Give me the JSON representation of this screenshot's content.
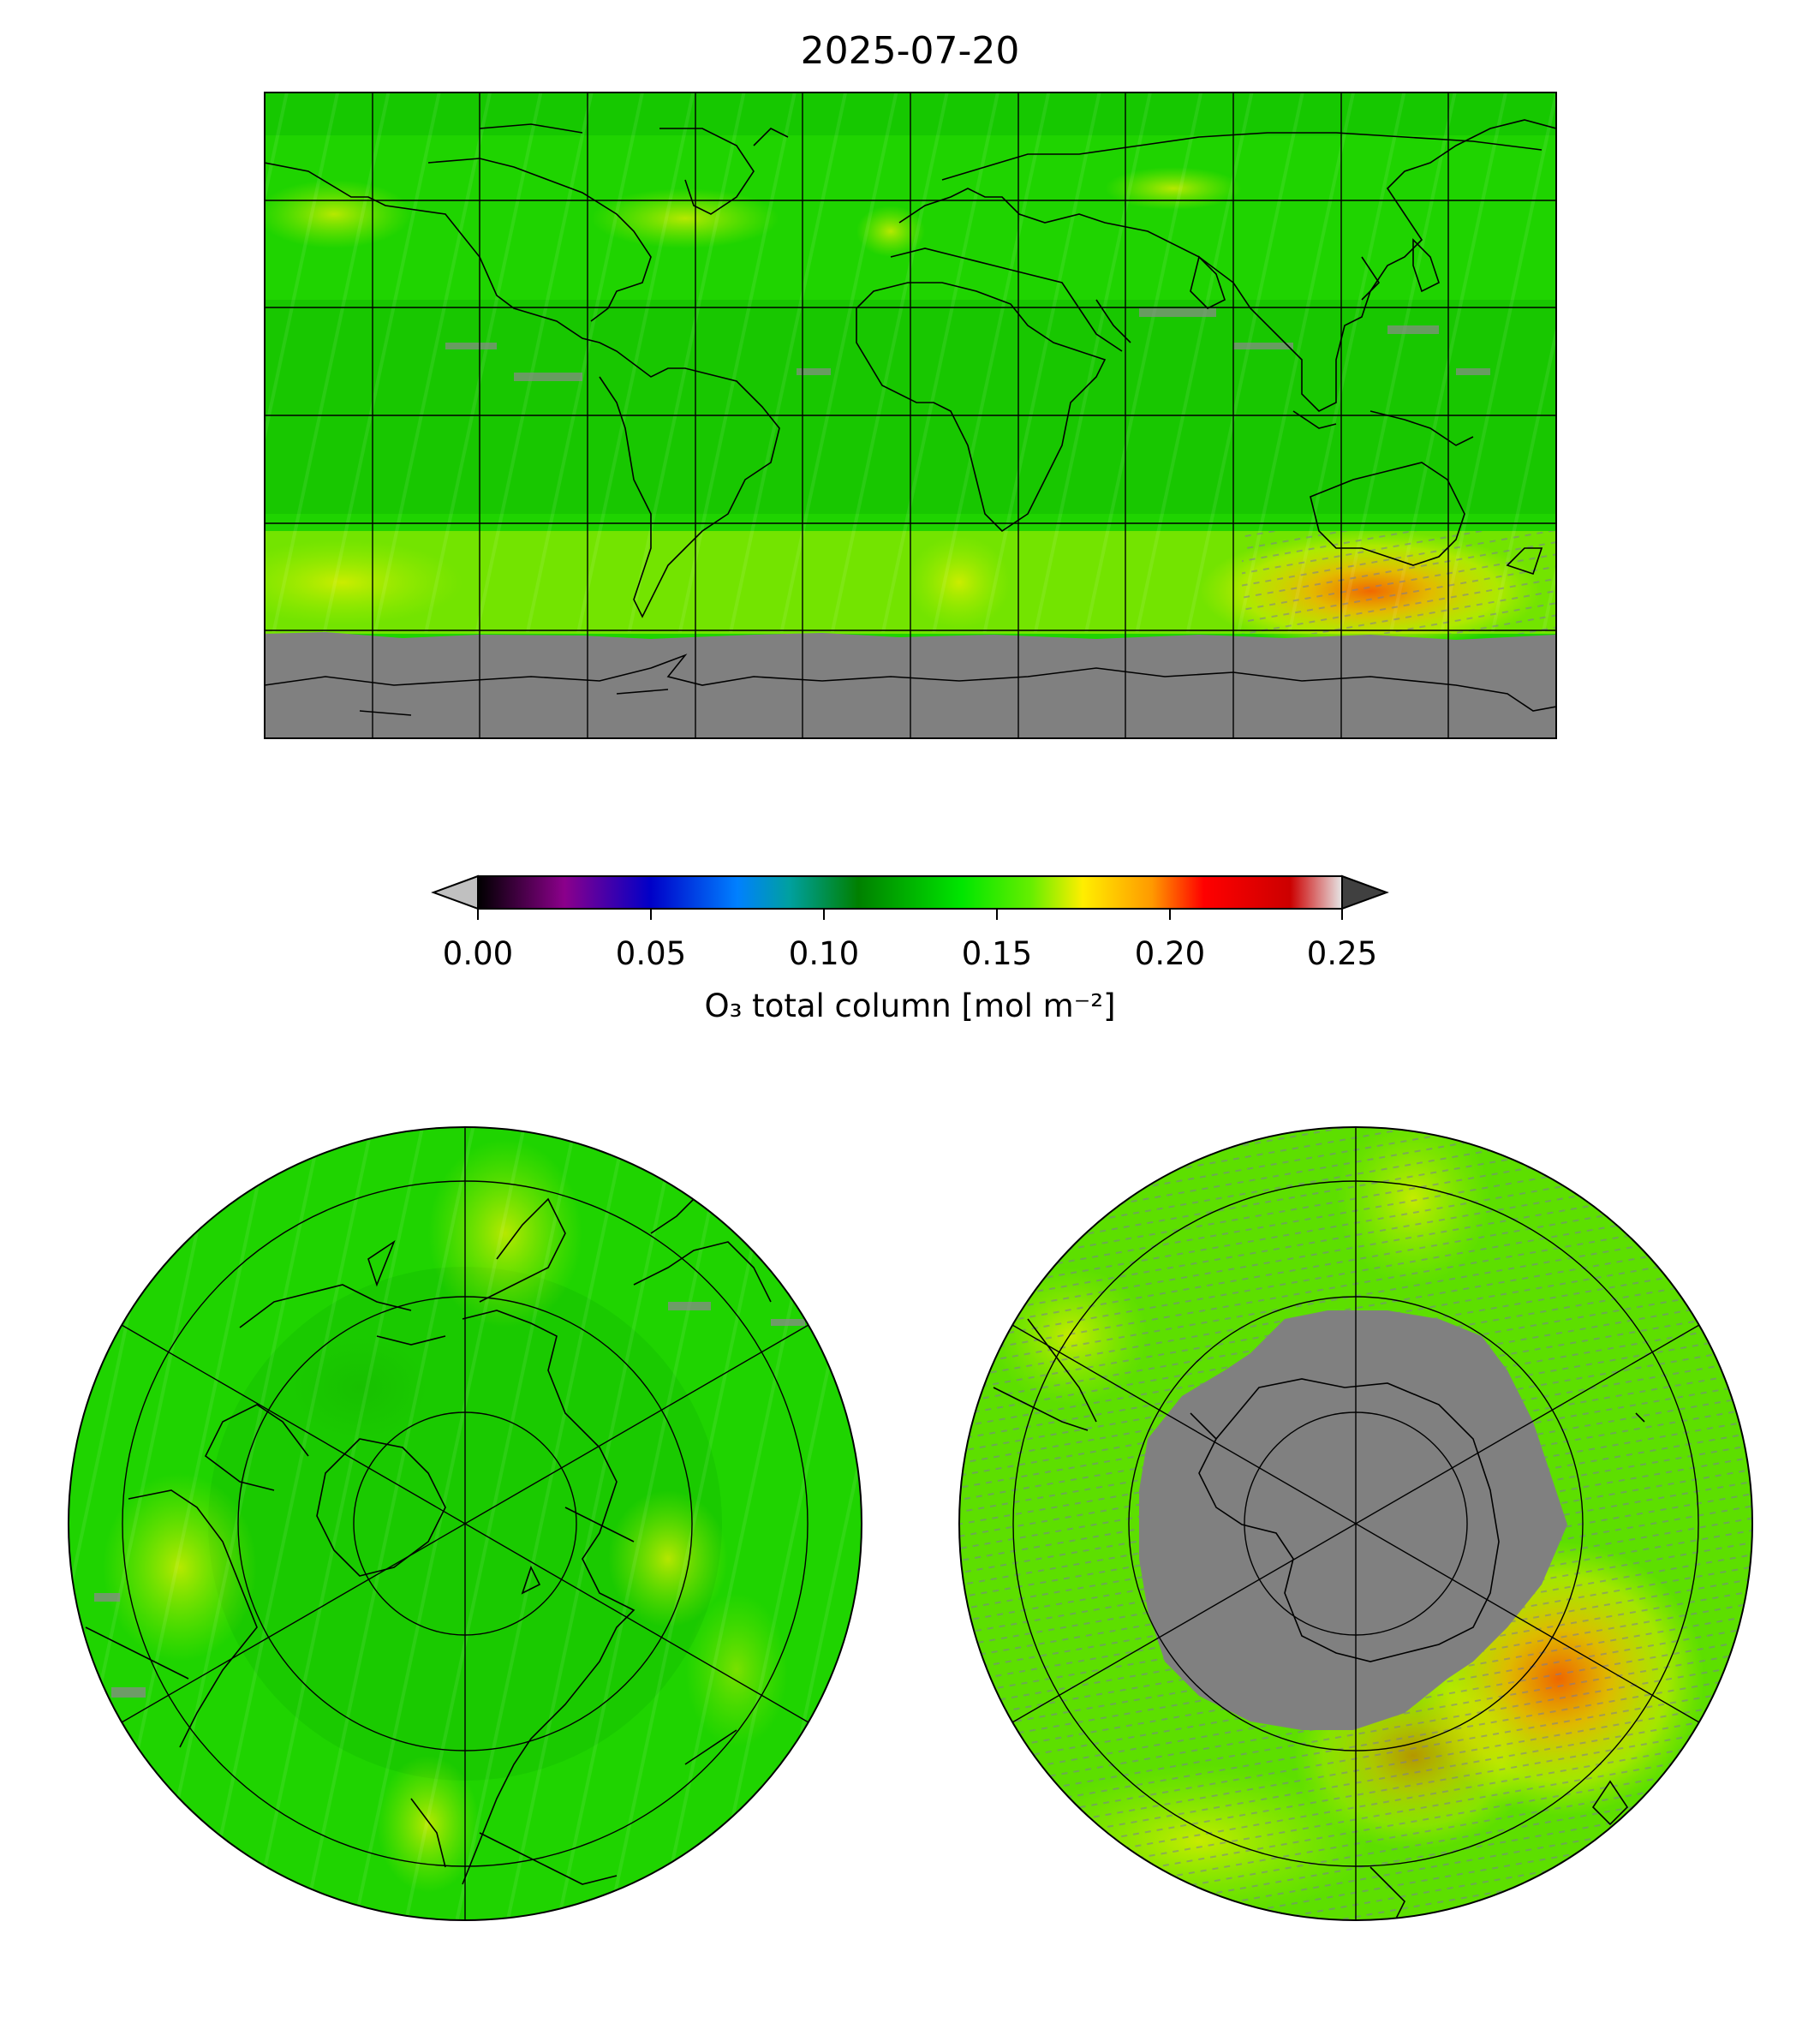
{
  "title": "2025-07-20",
  "colorbar": {
    "label": "O₃ total column [mol m⁻²]",
    "ticks": [
      "0.00",
      "0.05",
      "0.10",
      "0.15",
      "0.20",
      "0.25"
    ],
    "range": [
      0.0,
      0.25
    ],
    "extend": "both",
    "colormap": [
      "#000000",
      "#8b008b",
      "#0000c8",
      "#0080ff",
      "#00a0a0",
      "#008000",
      "#00e600",
      "#66ee00",
      "#ffee00",
      "#ff9900",
      "#ff0000",
      "#cc0000",
      "#e6e6e6"
    ],
    "under_color": "#c0c0c0",
    "over_color": "#404040"
  },
  "colors": {
    "ozone_background": "#1fd400",
    "missing_data": "#808080",
    "coastline": "#000000"
  },
  "maps": [
    {
      "name": "global-map",
      "projection": "equirectangular"
    },
    {
      "name": "north-polar-map",
      "projection": "north-polar-stereographic"
    },
    {
      "name": "south-polar-map",
      "projection": "south-polar-stereographic"
    }
  ]
}
